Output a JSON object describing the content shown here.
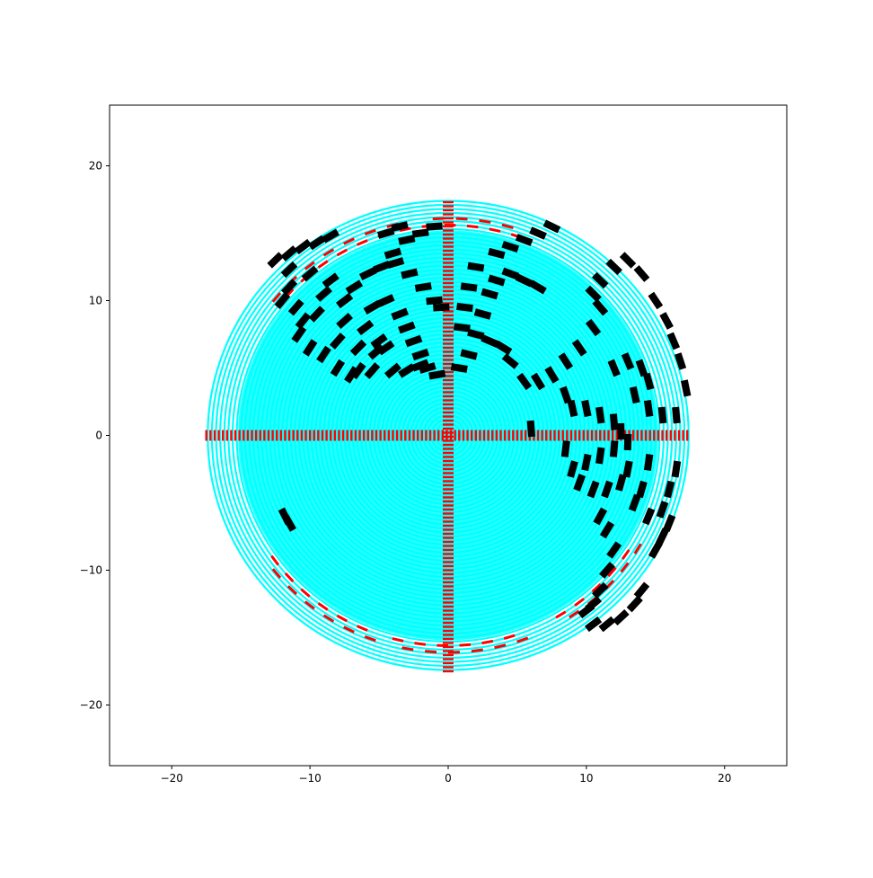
{
  "chart_data": {
    "type": "scatter",
    "title": "",
    "xlabel": "",
    "ylabel": "",
    "xlim": [
      -24.5,
      24.5
    ],
    "ylim": [
      -24.5,
      24.5
    ],
    "x_ticks": [
      -20,
      -10,
      0,
      10,
      20
    ],
    "y_ticks": [
      -20,
      -10,
      0,
      10,
      20
    ],
    "x_tick_labels": [
      "−20",
      "−10",
      "0",
      "10",
      "20"
    ],
    "y_tick_labels": [
      "−20",
      "−10",
      "0",
      "10",
      "20"
    ],
    "grid": false,
    "legend": "none",
    "rings": {
      "r_min": 0.3,
      "r_max": 17.5,
      "r_step": 0.3,
      "outer_dashed_from": 15.4,
      "outer_dashed_step": 0.5
    },
    "series": [
      {
        "role": "free-space",
        "color": "#00ffff",
        "description_points": "concentric polar sample rings"
      },
      {
        "role": "occupied",
        "color": "#000000",
        "points": [
          [
            -11.5,
            11.0
          ],
          [
            -12.0,
            10.0
          ],
          [
            -11.0,
            9.5
          ],
          [
            -10.5,
            8.5
          ],
          [
            -9.5,
            9.0
          ],
          [
            -9.0,
            10.5
          ],
          [
            -8.5,
            11.5
          ],
          [
            -10.0,
            12.0
          ],
          [
            -11.5,
            12.3
          ],
          [
            -10.8,
            7.5
          ],
          [
            -10.0,
            6.5
          ],
          [
            -9.0,
            6.0
          ],
          [
            -8.0,
            7.0
          ],
          [
            -7.5,
            8.5
          ],
          [
            -7.5,
            10.0
          ],
          [
            -6.8,
            11.0
          ],
          [
            -5.8,
            12.0
          ],
          [
            -4.8,
            12.5
          ],
          [
            -3.8,
            12.8
          ],
          [
            -2.8,
            12.0
          ],
          [
            -1.8,
            11.0
          ],
          [
            -1.0,
            10.0
          ],
          [
            -0.5,
            9.5
          ],
          [
            -8.0,
            5.0
          ],
          [
            -7.0,
            4.5
          ],
          [
            -6.5,
            6.5
          ],
          [
            -6.0,
            8.0
          ],
          [
            -5.5,
            9.5
          ],
          [
            -4.5,
            10.0
          ],
          [
            -3.5,
            9.0
          ],
          [
            -3.0,
            8.0
          ],
          [
            -2.5,
            7.0
          ],
          [
            -2.0,
            6.0
          ],
          [
            -1.5,
            5.0
          ],
          [
            -0.8,
            4.5
          ],
          [
            -5.0,
            7.0
          ],
          [
            -4.5,
            6.5
          ],
          [
            -5.2,
            6.2
          ],
          [
            -6.5,
            4.8
          ],
          [
            -5.5,
            4.8
          ],
          [
            -4.0,
            4.8
          ],
          [
            -3.0,
            4.8
          ],
          [
            -2.0,
            5.2
          ],
          [
            -4.0,
            13.5
          ],
          [
            -3.0,
            14.5
          ],
          [
            -2.0,
            15.0
          ],
          [
            -1.0,
            15.5
          ],
          [
            -4.5,
            15.0
          ],
          [
            -3.5,
            15.5
          ],
          [
            -12.5,
            13.0
          ],
          [
            -11.5,
            13.5
          ],
          [
            -10.5,
            14.0
          ],
          [
            -9.5,
            14.3
          ],
          [
            -8.5,
            14.8
          ],
          [
            0.8,
            5.0
          ],
          [
            1.5,
            6.0
          ],
          [
            2.0,
            7.5
          ],
          [
            2.5,
            9.0
          ],
          [
            3.0,
            10.5
          ],
          [
            3.5,
            11.5
          ],
          [
            4.5,
            12.0
          ],
          [
            5.5,
            11.5
          ],
          [
            6.5,
            11.0
          ],
          [
            1.0,
            8.0
          ],
          [
            1.2,
            9.5
          ],
          [
            1.5,
            11.0
          ],
          [
            2.0,
            12.5
          ],
          [
            3.5,
            13.5
          ],
          [
            4.5,
            14.0
          ],
          [
            5.5,
            14.5
          ],
          [
            6.5,
            15.0
          ],
          [
            7.5,
            15.5
          ],
          [
            3.0,
            7.0
          ],
          [
            4.0,
            6.5
          ],
          [
            4.5,
            5.5
          ],
          [
            5.5,
            4.0
          ],
          [
            6.5,
            4.0
          ],
          [
            7.5,
            4.5
          ],
          [
            8.5,
            5.5
          ],
          [
            9.5,
            6.5
          ],
          [
            10.5,
            8.0
          ],
          [
            11.0,
            9.5
          ],
          [
            10.5,
            10.5
          ],
          [
            11.0,
            11.5
          ],
          [
            12.0,
            12.5
          ],
          [
            13.0,
            13.0
          ],
          [
            14.0,
            12.0
          ],
          [
            15.0,
            10.0
          ],
          [
            15.8,
            8.5
          ],
          [
            16.3,
            7.0
          ],
          [
            16.8,
            5.5
          ],
          [
            17.2,
            3.5
          ],
          [
            12.0,
            5.0
          ],
          [
            13.0,
            5.5
          ],
          [
            14.0,
            5.0
          ],
          [
            14.5,
            4.0
          ],
          [
            13.5,
            3.0
          ],
          [
            14.5,
            2.0
          ],
          [
            15.5,
            1.5
          ],
          [
            16.5,
            1.5
          ],
          [
            8.5,
            3.0
          ],
          [
            9.0,
            2.0
          ],
          [
            10.0,
            2.0
          ],
          [
            11.0,
            1.5
          ],
          [
            12.0,
            1.0
          ],
          [
            12.5,
            0.3
          ],
          [
            13.0,
            -0.5
          ],
          [
            12.0,
            -1.0
          ],
          [
            11.0,
            -1.5
          ],
          [
            10.0,
            -2.0
          ],
          [
            9.0,
            -2.5
          ],
          [
            8.5,
            -1.0
          ],
          [
            9.5,
            -3.5
          ],
          [
            10.5,
            -4.0
          ],
          [
            11.5,
            -4.0
          ],
          [
            12.5,
            -3.5
          ],
          [
            13.0,
            -2.5
          ],
          [
            14.5,
            -2.0
          ],
          [
            14.0,
            -4.0
          ],
          [
            13.5,
            -5.0
          ],
          [
            14.5,
            -6.0
          ],
          [
            15.5,
            -5.5
          ],
          [
            16.0,
            -4.0
          ],
          [
            16.5,
            -2.5
          ],
          [
            11.0,
            -6.0
          ],
          [
            11.5,
            -7.0
          ],
          [
            12.0,
            -8.5
          ],
          [
            11.5,
            -10.0
          ],
          [
            11.0,
            -11.5
          ],
          [
            10.5,
            -12.5
          ],
          [
            10.0,
            -13.0
          ],
          [
            10.5,
            -14.0
          ],
          [
            11.5,
            -14.0
          ],
          [
            12.5,
            -13.5
          ],
          [
            13.5,
            -12.5
          ],
          [
            14.0,
            -11.5
          ],
          [
            15.0,
            -8.5
          ],
          [
            15.5,
            -7.5
          ],
          [
            16.0,
            -6.5
          ],
          [
            -11.8,
            -6.0
          ],
          [
            -11.5,
            -6.5
          ],
          [
            6.0,
            0.5
          ]
        ]
      },
      {
        "role": "axes-and-outer",
        "color": "#ff0000",
        "description_points": "dense samples along x=0 and y=0 axes plus dashed outer rings"
      }
    ]
  }
}
